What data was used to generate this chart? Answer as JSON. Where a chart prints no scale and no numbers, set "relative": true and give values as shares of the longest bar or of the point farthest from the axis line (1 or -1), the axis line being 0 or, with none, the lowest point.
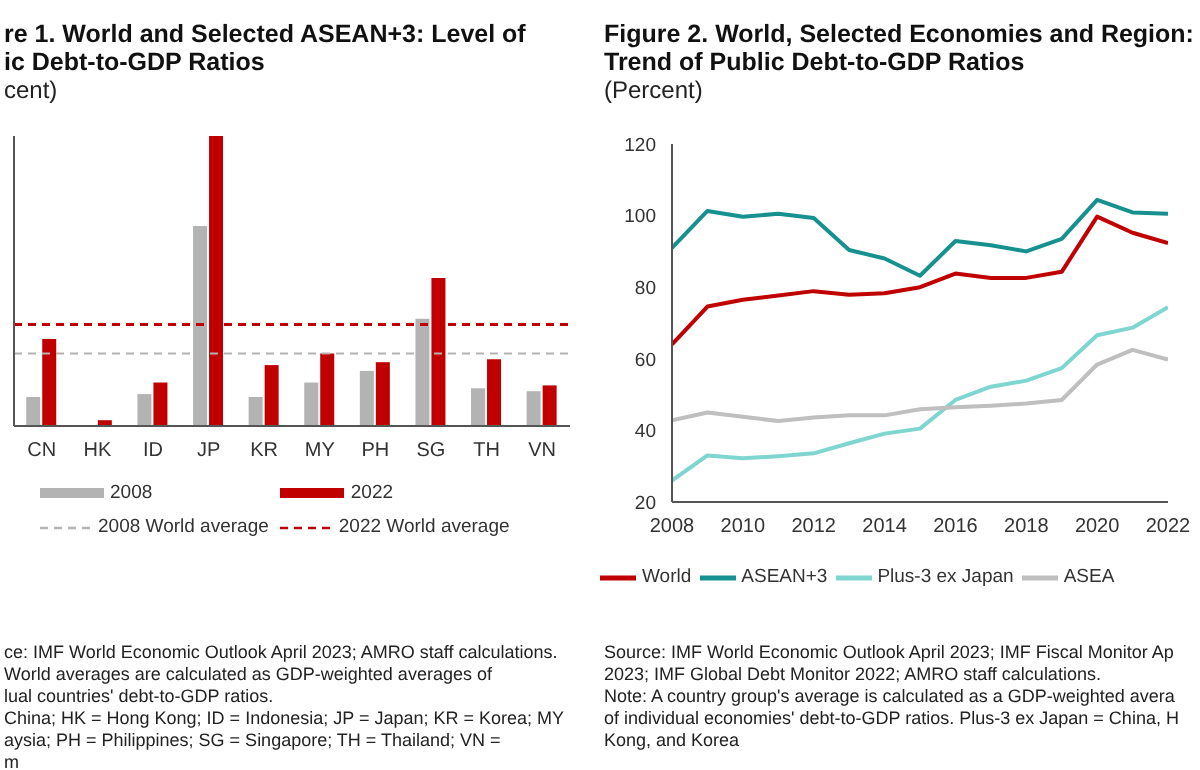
{
  "chart_data": [
    {
      "type": "bar",
      "title": "re 1. World and Selected ASEAN+3: Level of\nic Debt-to-GDP Ratios",
      "subtitle": "cent)",
      "relative": true,
      "legend": "bottom",
      "categories": [
        "CN",
        "HK",
        "ID",
        "JP",
        "KR",
        "MY",
        "PH",
        "SG",
        "TH",
        "VN"
      ],
      "series": [
        {
          "name": "2008",
          "color": "#b3b3b3",
          "values": [
            0.1,
            0,
            0.11,
            0.69,
            0.1,
            0.15,
            0.19,
            0.37,
            0.13,
            0.12
          ]
        },
        {
          "name": "2022",
          "color": "#c00000",
          "values": [
            0.3,
            0.02,
            0.15,
            1,
            0.21,
            0.25,
            0.22,
            0.51,
            0.23,
            0.14
          ]
        }
      ],
      "ref_lines": [
        {
          "axis": "y",
          "value": 0.25,
          "label": "2008 World average",
          "color": "#b3b3b3",
          "line_style": "dashed"
        },
        {
          "axis": "y",
          "value": 0.35,
          "label": "2022 World average",
          "color": "#c00000",
          "line_style": "dashed"
        }
      ],
      "annotations": [
        "ce: IMF World Economic Outlook April 2023; AMRO staff calculations.",
        "World averages are calculated as GDP-weighted averages of",
        "lual countries' debt-to-GDP ratios.",
        "China; HK = Hong Kong; ID = Indonesia; JP = Japan; KR = Korea; MY",
        "aysia; PH = Philippines; SG = Singapore; TH = Thailand; VN =",
        "m"
      ]
    },
    {
      "type": "line",
      "title": "Figure 2. World, Selected Economies and Region:\nTrend of Public Debt-to-GDP Ratios",
      "subtitle": "(Percent)",
      "legend": "bottom",
      "x": [
        2008,
        2009,
        2010,
        2011,
        2012,
        2013,
        2014,
        2015,
        2016,
        2017,
        2018,
        2019,
        2020,
        2021,
        2022
      ],
      "xlim": [
        2008,
        2022
      ],
      "xticks": [
        2008,
        2010,
        2012,
        2014,
        2016,
        2018,
        2020,
        2022
      ],
      "ylim": [
        20,
        120
      ],
      "yticks": [
        20,
        40,
        60,
        80,
        100,
        120
      ],
      "series": [
        {
          "name": "World",
          "color": "#c00000",
          "values": [
            64,
            74.6,
            76.5,
            77.7,
            78.9,
            77.9,
            78.3,
            80,
            83.8,
            82.6,
            82.6,
            84.3,
            99.7,
            95.2,
            92.3
          ]
        },
        {
          "name": "ASEAN+3",
          "color": "#17918f",
          "values": [
            91,
            101.3,
            99.7,
            100.5,
            99.3,
            90.4,
            88,
            83.2,
            92.9,
            91.7,
            90,
            93.5,
            104.4,
            100.9,
            100.5
          ]
        },
        {
          "name": "Plus-3 ex Japan",
          "color": "#7fd6d0",
          "values": [
            26,
            33,
            32.2,
            32.8,
            33.6,
            36.4,
            39.1,
            40.5,
            48.5,
            52.2,
            53.9,
            57.4,
            66.6,
            68.7,
            74.4
          ]
        },
        {
          "name": "ASEA",
          "color": "#bfbfbf",
          "values": [
            42.8,
            45,
            43.8,
            42.6,
            43.6,
            44.2,
            44.2,
            45.9,
            46.5,
            46.9,
            47.5,
            48.5,
            58.4,
            62.5,
            59.8
          ]
        }
      ],
      "annotations": [
        "Source: IMF World Economic Outlook April 2023; IMF Fiscal Monitor Ap",
        "2023; IMF Global Debt Monitor 2022; AMRO staff calculations.",
        "Note: A country group's average is calculated as a GDP-weighted avera",
        "of individual economies' debt-to-GDP ratios. Plus-3 ex Japan = China, H",
        "Kong, and Korea"
      ]
    }
  ]
}
